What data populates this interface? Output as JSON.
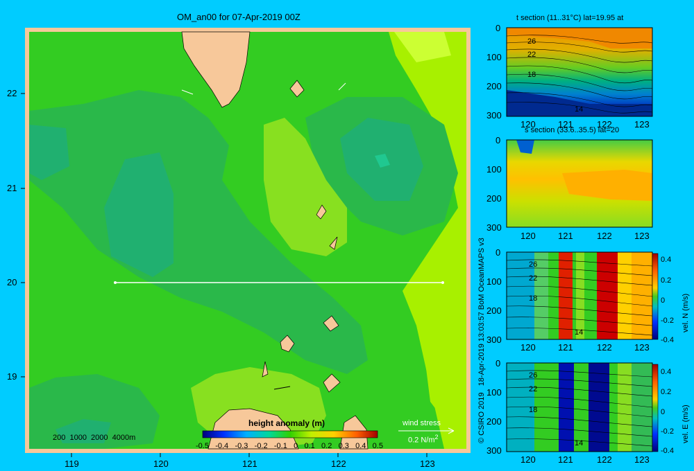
{
  "main_map": {
    "title": "OM_an00 for 07-Apr-2019 00Z",
    "x_ticks": [
      "119",
      "120",
      "121",
      "122",
      "123"
    ],
    "y_ticks": [
      "22",
      "21",
      "20",
      "19"
    ],
    "depth_legend": "200  1000  2000  4000m",
    "colorbar": {
      "title": "height anomaly (m)",
      "ticks": [
        "-0.5",
        "-0.4",
        "-0.3",
        "-0.2",
        "-0.1",
        "0",
        "0.1",
        "0.2",
        "0.3",
        "0.4",
        "0.5"
      ]
    },
    "wind": {
      "label": "wind stress",
      "value": "0.2 N/m",
      "exp": "2"
    }
  },
  "sections": [
    {
      "title": "t section (11..31°C) lat=19.95 at",
      "x_ticks": [
        "120",
        "121",
        "122",
        "123"
      ],
      "y_ticks": [
        "0",
        "100",
        "200",
        "300"
      ],
      "contour_labels": [
        "26",
        "22",
        "18",
        "14"
      ]
    },
    {
      "title": "s section (33.6..35.5) lat=20",
      "x_ticks": [
        "120",
        "121",
        "122",
        "123"
      ],
      "y_ticks": [
        "0",
        "100",
        "200",
        "300"
      ]
    },
    {
      "title": "",
      "x_ticks": [
        "120",
        "121",
        "122",
        "123"
      ],
      "y_ticks": [
        "0",
        "100",
        "200",
        "300"
      ],
      "contour_labels": [
        "26",
        "22",
        "18",
        "14"
      ],
      "colorbar_ticks": [
        "0.4",
        "0.2",
        "0",
        "-0.2",
        "-0.4"
      ],
      "colorbar_label": "vel. N (m/s)"
    },
    {
      "title": "",
      "x_ticks": [
        "120",
        "121",
        "122",
        "123"
      ],
      "y_ticks": [
        "0",
        "100",
        "200",
        "300"
      ],
      "contour_labels": [
        "26",
        "22",
        "18",
        "14"
      ],
      "colorbar_ticks": [
        "0.4",
        "0.2",
        "0",
        "-0.2",
        "-0.4"
      ],
      "colorbar_label": "vel. E (m/s)"
    }
  ],
  "side_credit": "© CSIRO 2019   18-Apr-2019 13:03:57 BoM OceanMAPS v3",
  "colors": {
    "background": "#00ccff",
    "land": "#f7c89a",
    "frame": "#f7c89a"
  },
  "chart_data": [
    {
      "type": "heatmap",
      "title": "OM_an00 for 07-Apr-2019 00Z",
      "x_range": [
        118.5,
        123.5
      ],
      "y_range": [
        18.3,
        22.7
      ],
      "x_ticks": [
        119,
        120,
        121,
        122,
        123
      ],
      "y_ticks": [
        19,
        20,
        21,
        22
      ],
      "colorbar_title": "height anomaly (m)",
      "colorbar_range": [
        -0.5,
        0.5
      ],
      "section_line": {
        "lat": 20,
        "lon_from": 119.5,
        "lon_to": 123.3
      }
    },
    {
      "type": "heatmap",
      "title": "t section (11..31°C) lat=19.95 at",
      "x_range": [
        119.5,
        123.3
      ],
      "y_range": [
        0,
        300
      ],
      "y_inverted": true,
      "contour_labels": [
        26,
        22,
        18,
        14
      ]
    },
    {
      "type": "heatmap",
      "title": "s section (33.6..35.5) lat=20",
      "x_range": [
        119.5,
        123.3
      ],
      "y_range": [
        0,
        300
      ],
      "y_inverted": true
    },
    {
      "type": "heatmap",
      "title": "",
      "x_range": [
        119.5,
        123.3
      ],
      "y_range": [
        0,
        300
      ],
      "y_inverted": true,
      "colorbar_label": "vel. N (m/s)",
      "colorbar_range": [
        -0.4,
        0.4
      ]
    },
    {
      "type": "heatmap",
      "title": "",
      "x_range": [
        119.5,
        123.3
      ],
      "y_range": [
        0,
        300
      ],
      "y_inverted": true,
      "colorbar_label": "vel. E (m/s)",
      "colorbar_range": [
        -0.4,
        0.4
      ]
    }
  ]
}
